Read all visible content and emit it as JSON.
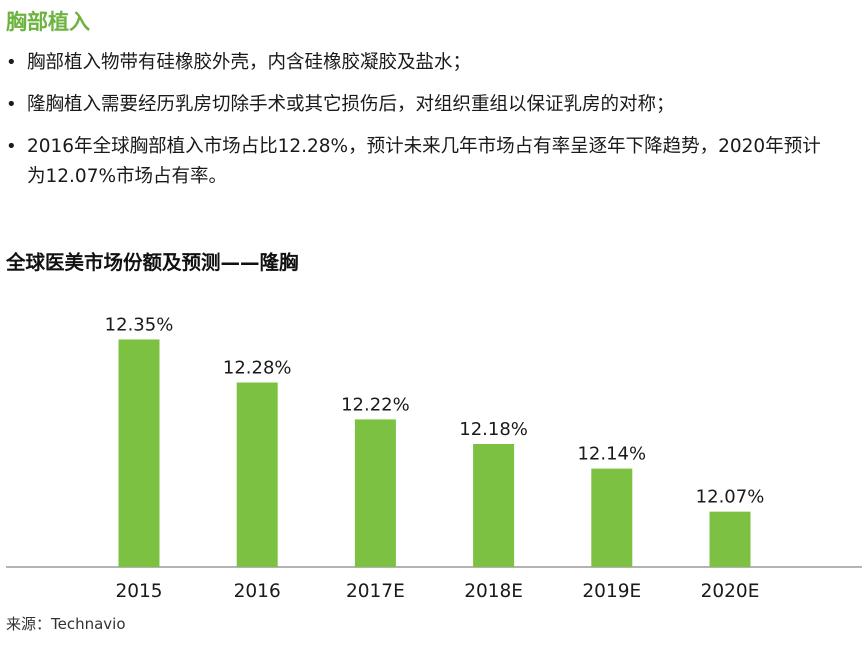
{
  "page": {
    "heading": "胸部植入",
    "bullets": [
      "胸部植入物带有硅橡胶外壳，内含硅橡胶凝胶及盐水；",
      "隆胸植入需要经历乳房切除手术或其它损伤后，对组织重组以保证乳房的对称；",
      "2016年全球胸部植入市场占比12.28%，预计未来几年市场占有率呈逐年下降趋势，2020年预计为12.07%市场占有率。"
    ],
    "source": "来源：Technavio"
  },
  "chart_data": {
    "type": "bar",
    "title": "全球医美市场份额及预测——隆胸",
    "categories": [
      "2015",
      "2016",
      "2017E",
      "2018E",
      "2019E",
      "2020E"
    ],
    "values": [
      12.35,
      12.28,
      12.22,
      12.18,
      12.14,
      12.07
    ],
    "data_labels": [
      "12.35%",
      "12.28%",
      "12.22%",
      "12.18%",
      "12.14%",
      "12.07%"
    ],
    "xlabel": "",
    "ylabel": "",
    "ylim": [
      11.98,
      12.38
    ],
    "grid": false,
    "legend": "none",
    "bar_color": "#7cc142",
    "axis_color": "#9a9a9a"
  }
}
